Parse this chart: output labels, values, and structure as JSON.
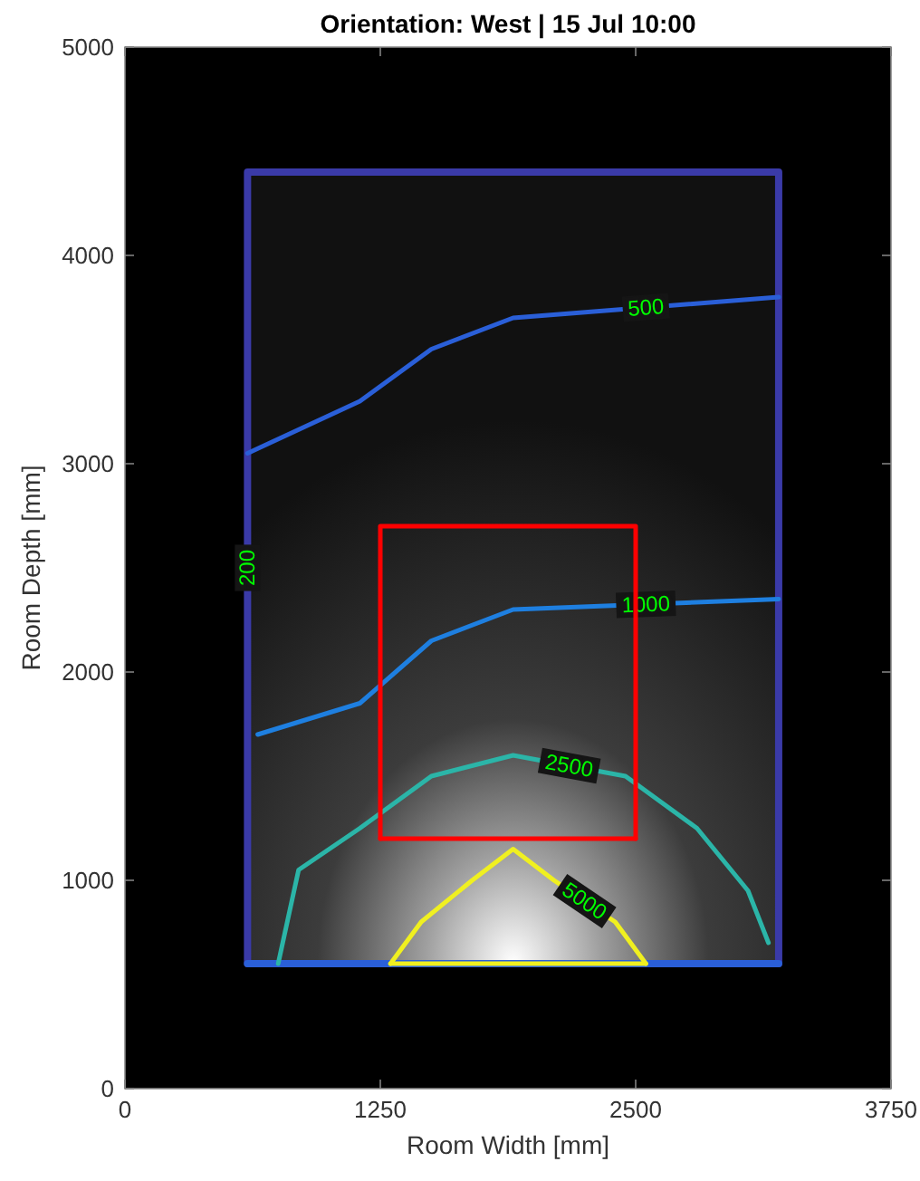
{
  "chart_data": {
    "type": "line",
    "title": "Orientation: West | 15 Jul 10:00",
    "xlabel": "Room Width [mm]",
    "ylabel": "Room Depth [mm]",
    "xlim": [
      0,
      3750
    ],
    "xticks": [
      0,
      1250,
      2500,
      3750
    ],
    "ylim": [
      0,
      5000
    ],
    "yticks": [
      0,
      1000,
      2000,
      3000,
      4000,
      5000
    ],
    "grid": false,
    "series": [
      {
        "name": "200",
        "color": "#3a3aa8",
        "x": [
          600,
          600,
          3200,
          3200
        ],
        "values": [
          600,
          4400,
          4400,
          600
        ]
      },
      {
        "color": "#2a5fd8",
        "x": [
          600,
          3200
        ],
        "values": [
          600,
          600
        ]
      },
      {
        "name": "500",
        "color": "#2a5fd8",
        "x": [
          600,
          1150,
          1500,
          1900,
          3200
        ],
        "values": [
          3050,
          3300,
          3550,
          3700,
          3800
        ]
      },
      {
        "name": "1000",
        "color": "#1e7fe0",
        "x": [
          650,
          1150,
          1500,
          1900,
          3200
        ],
        "values": [
          1700,
          1850,
          2150,
          2300,
          2350
        ]
      },
      {
        "name": "2500",
        "color": "#2bb5a8",
        "x": [
          750,
          850,
          1150,
          1500,
          1900,
          2450,
          2800,
          3050,
          3150
        ],
        "values": [
          600,
          1050,
          1250,
          1500,
          1600,
          1500,
          1250,
          950,
          700
        ]
      },
      {
        "name": "5000",
        "color": "#f0f020",
        "x": [
          1300,
          1450,
          1700,
          1900,
          2100,
          2400,
          2550
        ],
        "values": [
          600,
          800,
          1000,
          1150,
          1000,
          800,
          600
        ]
      },
      {
        "color": "#f0f020",
        "x": [
          1300,
          2550
        ],
        "values": [
          600,
          600
        ]
      },
      {
        "color": "#ff0000",
        "x": [
          1250,
          1250,
          2500,
          2500
        ],
        "values": [
          1200,
          2700,
          2700,
          1200
        ]
      },
      {
        "color": "#ff0000",
        "x": [
          1250,
          2500
        ],
        "values": [
          1200,
          1200
        ]
      }
    ]
  }
}
